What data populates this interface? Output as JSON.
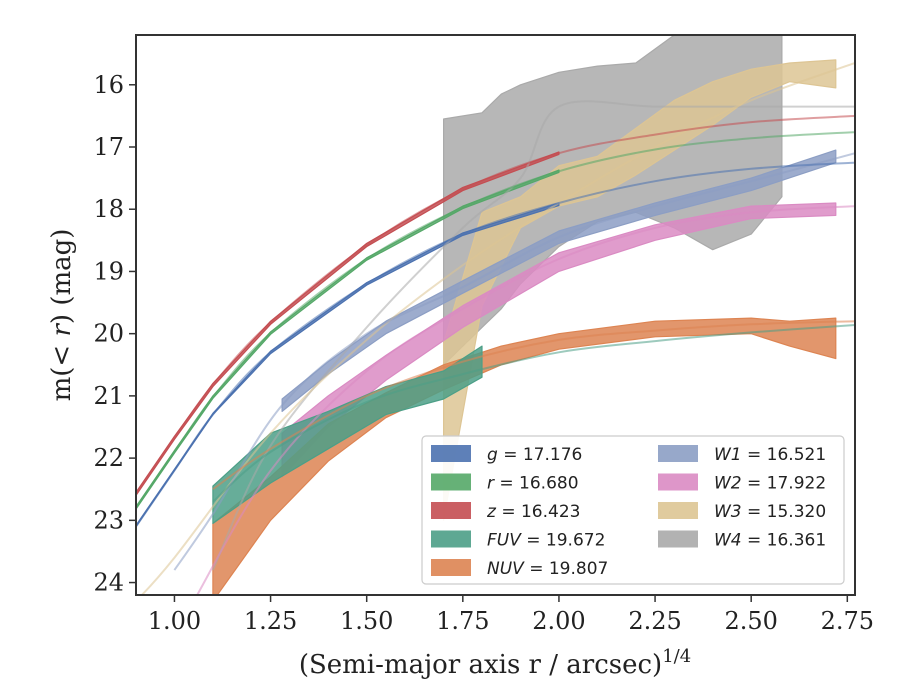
{
  "chart_data": {
    "type": "area",
    "xlabel": "(Semi-major axis r / arcsec)",
    "xlabel_super": "1/4",
    "ylabel_pre": "m(",
    "ylabel_mid": "< r",
    "ylabel_post": ") (mag)",
    "xlim": [
      0.9,
      2.77
    ],
    "ylim": [
      24.2,
      15.2
    ],
    "y_inverted": true,
    "xticks": [
      1.0,
      1.25,
      1.5,
      1.75,
      2.0,
      2.25,
      2.5,
      2.75
    ],
    "xtick_labels": [
      "1.00",
      "1.25",
      "1.50",
      "1.75",
      "2.00",
      "2.25",
      "2.50",
      "2.75"
    ],
    "yticks": [
      16,
      17,
      18,
      19,
      20,
      21,
      22,
      23,
      24
    ],
    "ytick_labels": [
      "16",
      "17",
      "18",
      "19",
      "20",
      "21",
      "22",
      "23",
      "24"
    ],
    "grid": false,
    "legend_position": "lower-right",
    "series": [
      {
        "key": "g",
        "name": "g",
        "value_label": "= 17.176",
        "color": "#4c72b0",
        "band": [
          [
            0.9,
            23.08,
            23.1
          ],
          [
            1.0,
            22.18,
            22.2
          ],
          [
            1.1,
            21.28,
            21.3
          ],
          [
            1.25,
            20.28,
            20.32
          ],
          [
            1.5,
            19.18,
            19.22
          ],
          [
            1.75,
            18.38,
            18.42
          ],
          [
            2.0,
            17.9,
            17.94
          ]
        ],
        "fit": [
          [
            0.9,
            23.1
          ],
          [
            1.0,
            22.2
          ],
          [
            1.1,
            21.3
          ],
          [
            1.25,
            20.3
          ],
          [
            1.5,
            19.2
          ],
          [
            1.75,
            18.4
          ],
          [
            2.0,
            17.9
          ],
          [
            2.25,
            17.55
          ],
          [
            2.5,
            17.35
          ],
          [
            2.77,
            17.25
          ]
        ]
      },
      {
        "key": "r",
        "name": "r",
        "value_label": "= 16.680",
        "color": "#55a868",
        "band": [
          [
            0.9,
            22.78,
            22.82
          ],
          [
            1.0,
            21.88,
            21.92
          ],
          [
            1.1,
            21.0,
            21.04
          ],
          [
            1.25,
            19.97,
            20.01
          ],
          [
            1.5,
            18.78,
            18.82
          ],
          [
            1.75,
            17.95,
            17.99
          ],
          [
            2.0,
            17.37,
            17.41
          ]
        ],
        "fit": [
          [
            0.9,
            22.8
          ],
          [
            1.0,
            21.9
          ],
          [
            1.1,
            21.02
          ],
          [
            1.25,
            19.99
          ],
          [
            1.5,
            18.8
          ],
          [
            1.75,
            17.97
          ],
          [
            2.0,
            17.39
          ],
          [
            2.25,
            17.04
          ],
          [
            2.5,
            16.86
          ],
          [
            2.77,
            16.76
          ]
        ]
      },
      {
        "key": "z",
        "name": "z",
        "value_label": "= 16.423",
        "color": "#c44e52",
        "band": [
          [
            0.9,
            22.55,
            22.6
          ],
          [
            1.0,
            21.65,
            21.7
          ],
          [
            1.1,
            20.8,
            20.85
          ],
          [
            1.25,
            19.8,
            19.85
          ],
          [
            1.5,
            18.55,
            18.6
          ],
          [
            1.75,
            17.65,
            17.7
          ],
          [
            2.0,
            17.08,
            17.12
          ]
        ],
        "fit": [
          [
            0.9,
            22.58
          ],
          [
            1.0,
            21.68
          ],
          [
            1.1,
            20.82
          ],
          [
            1.25,
            19.82
          ],
          [
            1.5,
            18.58
          ],
          [
            1.75,
            17.68
          ],
          [
            2.0,
            17.1
          ],
          [
            2.25,
            16.8
          ],
          [
            2.5,
            16.6
          ],
          [
            2.77,
            16.5
          ]
        ]
      },
      {
        "key": "FUV",
        "name": "FUV",
        "value_label": "= 19.672",
        "color": "#4c9f87",
        "band": [
          [
            1.1,
            22.45,
            23.05
          ],
          [
            1.25,
            21.6,
            22.4
          ],
          [
            1.4,
            21.25,
            21.85
          ],
          [
            1.55,
            20.85,
            21.3
          ],
          [
            1.7,
            20.6,
            21.05
          ],
          [
            1.8,
            20.2,
            20.7
          ]
        ],
        "fit": [
          [
            1.1,
            22.7
          ],
          [
            1.25,
            21.9
          ],
          [
            1.5,
            21.1
          ],
          [
            1.75,
            20.65
          ],
          [
            2.0,
            20.3
          ],
          [
            2.25,
            20.12
          ],
          [
            2.5,
            19.98
          ],
          [
            2.77,
            19.86
          ]
        ]
      },
      {
        "key": "NUV",
        "name": "NUV",
        "value_label": "= 19.807",
        "color": "#dd8452",
        "band": [
          [
            1.1,
            23.05,
            24.3
          ],
          [
            1.25,
            22.3,
            23.0
          ],
          [
            1.4,
            21.45,
            22.05
          ],
          [
            1.55,
            20.95,
            21.35
          ],
          [
            1.7,
            20.5,
            20.9
          ],
          [
            1.85,
            20.2,
            20.5
          ],
          [
            2.0,
            20.0,
            20.25
          ],
          [
            2.25,
            19.8,
            20.05
          ],
          [
            2.5,
            19.75,
            20.0
          ],
          [
            2.6,
            19.8,
            20.2
          ],
          [
            2.72,
            19.75,
            20.4
          ]
        ],
        "fit": [
          [
            1.1,
            22.5
          ],
          [
            1.25,
            21.85
          ],
          [
            1.5,
            21.0
          ],
          [
            1.75,
            20.45
          ],
          [
            2.0,
            20.1
          ],
          [
            2.25,
            19.95
          ],
          [
            2.5,
            19.85
          ],
          [
            2.77,
            19.8
          ]
        ]
      },
      {
        "key": "W1",
        "name": "W1",
        "value_label": "= 16.521",
        "color": "#8c9ec4",
        "band": [
          [
            1.28,
            21.05,
            21.25
          ],
          [
            1.4,
            20.45,
            20.65
          ],
          [
            1.55,
            19.8,
            20.0
          ],
          [
            1.75,
            19.15,
            19.35
          ],
          [
            2.0,
            18.35,
            18.55
          ],
          [
            2.25,
            17.9,
            18.1
          ],
          [
            2.5,
            17.5,
            17.7
          ],
          [
            2.72,
            17.05,
            17.25
          ]
        ],
        "fit": [
          [
            1.0,
            23.8
          ],
          [
            1.1,
            22.9
          ],
          [
            1.28,
            21.15
          ],
          [
            1.5,
            20.0
          ],
          [
            1.75,
            19.25
          ],
          [
            2.0,
            18.45
          ],
          [
            2.25,
            17.95
          ],
          [
            2.5,
            17.55
          ],
          [
            2.77,
            17.1
          ]
        ]
      },
      {
        "key": "W2",
        "name": "W2",
        "value_label": "= 17.922",
        "color": "#da8bc3",
        "band": [
          [
            1.28,
            21.6,
            22.3
          ],
          [
            1.4,
            21.0,
            21.5
          ],
          [
            1.55,
            20.35,
            20.75
          ],
          [
            1.75,
            19.55,
            19.9
          ],
          [
            2.0,
            18.7,
            19.0
          ],
          [
            2.25,
            18.25,
            18.5
          ],
          [
            2.5,
            17.95,
            18.15
          ],
          [
            2.72,
            17.9,
            18.1
          ]
        ],
        "fit": [
          [
            1.05,
            24.3
          ],
          [
            1.25,
            22.2
          ],
          [
            1.5,
            20.6
          ],
          [
            1.75,
            19.6
          ],
          [
            2.0,
            18.8
          ],
          [
            2.25,
            18.3
          ],
          [
            2.5,
            18.05
          ],
          [
            2.77,
            17.95
          ]
        ]
      },
      {
        "key": "W3",
        "name": "W3",
        "value_label": "= 15.320",
        "color": "#ddc594",
        "band": [
          [
            1.7,
            20.15,
            23.0
          ],
          [
            1.8,
            18.05,
            19.55
          ],
          [
            1.9,
            17.8,
            18.3
          ],
          [
            2.0,
            17.3,
            17.95
          ],
          [
            2.1,
            17.15,
            17.8
          ],
          [
            2.2,
            16.7,
            17.45
          ],
          [
            2.3,
            16.25,
            17.05
          ],
          [
            2.4,
            15.95,
            16.65
          ],
          [
            2.5,
            15.75,
            16.2
          ],
          [
            2.6,
            15.65,
            15.95
          ],
          [
            2.72,
            15.6,
            16.05
          ]
        ],
        "fit": [
          [
            0.9,
            24.3
          ],
          [
            1.0,
            23.6
          ],
          [
            1.25,
            21.6
          ],
          [
            1.5,
            20.1
          ],
          [
            1.75,
            18.9
          ],
          [
            2.0,
            17.9
          ],
          [
            2.25,
            17.0
          ],
          [
            2.5,
            16.25
          ],
          [
            2.77,
            15.65
          ]
        ]
      },
      {
        "key": "W4",
        "name": "W4",
        "value_label": "= 16.361",
        "color": "#aaaaaa",
        "band": [
          [
            1.7,
            16.55,
            20.5
          ],
          [
            1.8,
            16.45,
            19.9
          ],
          [
            1.85,
            16.15,
            19.6
          ],
          [
            1.9,
            16.0,
            19.2
          ],
          [
            2.0,
            15.8,
            18.6
          ],
          [
            2.1,
            15.7,
            18.2
          ],
          [
            2.2,
            15.65,
            18.05
          ],
          [
            2.3,
            15.2,
            18.3
          ],
          [
            2.4,
            15.2,
            18.65
          ],
          [
            2.5,
            15.2,
            18.4
          ],
          [
            2.58,
            15.2,
            17.8
          ]
        ],
        "fit": [
          [
            1.1,
            23.8
          ],
          [
            1.25,
            21.8
          ],
          [
            1.5,
            19.9
          ],
          [
            1.75,
            18.3
          ],
          [
            1.9,
            17.5
          ],
          [
            2.0,
            16.35
          ],
          [
            2.25,
            16.35
          ],
          [
            2.5,
            16.35
          ],
          [
            2.77,
            16.35
          ]
        ]
      }
    ]
  }
}
